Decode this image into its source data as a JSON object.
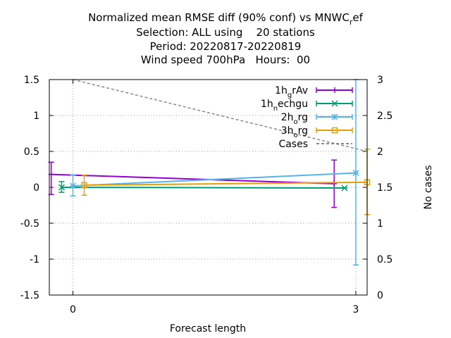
{
  "chart_data": {
    "type": "line",
    "title_lines": [
      "Normalized mean RMSE diff (90% conf) vs MNWC_ref",
      "Selection: ALL using    20 stations",
      "Period: 20220817-20220819",
      "Wind speed 700hPa   Hours:  00"
    ],
    "title_main": {
      "pre": "Normalized mean RMSE diff (90% conf) vs MNWC",
      "sub": "r",
      "post": "ef"
    },
    "xlabel": "Forecast length",
    "ylabel": "",
    "y2label": "No cases",
    "xlim": [
      -0.25,
      3.12
    ],
    "ylim": [
      -1.5,
      1.5
    ],
    "y2lim": [
      0,
      3
    ],
    "xticks": [
      0,
      3
    ],
    "yticks": [
      "1.5",
      "1",
      "0.5",
      "0",
      "-0.5",
      "-1",
      "-1.5"
    ],
    "y2ticks": [
      "3",
      "2.5",
      "2",
      "1.5",
      "1",
      "0.5",
      "0"
    ],
    "grid": true,
    "legend_position": "top-right",
    "series": [
      {
        "name": "1h_grAv",
        "label": {
          "pre": "1h",
          "sub": "g",
          "post": "rAv"
        },
        "color": "#9400d3",
        "marker": "plus",
        "x": [
          -0.23,
          2.77
        ],
        "y": [
          0.18,
          0.05
        ],
        "err_low": [
          -0.1,
          -0.28
        ],
        "err_high": [
          0.35,
          0.38
        ]
      },
      {
        "name": "1h_nechgu",
        "label": {
          "pre": "1h",
          "sub": "n",
          "post": "echgu"
        },
        "color": "#009e73",
        "marker": "cross",
        "x": [
          -0.12,
          2.88
        ],
        "y": [
          0.0,
          -0.01
        ],
        "err_low": [
          -0.07,
          -0.01
        ],
        "err_high": [
          0.08,
          -0.01
        ]
      },
      {
        "name": "2h_org",
        "label": {
          "pre": "2h",
          "sub": "o",
          "post": "rg"
        },
        "color": "#56b4e9",
        "marker": "star",
        "x": [
          0.0,
          3.0
        ],
        "y": [
          0.02,
          0.2
        ],
        "err_low": [
          -0.12,
          -1.08
        ],
        "err_high": [
          0.17,
          1.5
        ]
      },
      {
        "name": "3h_org",
        "label": {
          "pre": "3h",
          "sub": "o",
          "post": "rg"
        },
        "color": "#e69f00",
        "marker": "square",
        "x": [
          0.12,
          3.12
        ],
        "y": [
          0.03,
          0.07
        ],
        "err_low": [
          -0.11,
          -0.38
        ],
        "err_high": [
          0.17,
          0.53
        ]
      },
      {
        "name": "Cases",
        "label": {
          "pre": "Cases",
          "sub": "",
          "post": ""
        },
        "color": "#888888",
        "marker": "none",
        "dashed": true,
        "axis": "y2",
        "x": [
          0.0,
          3.12
        ],
        "y": [
          3.0,
          2.0
        ]
      }
    ]
  }
}
